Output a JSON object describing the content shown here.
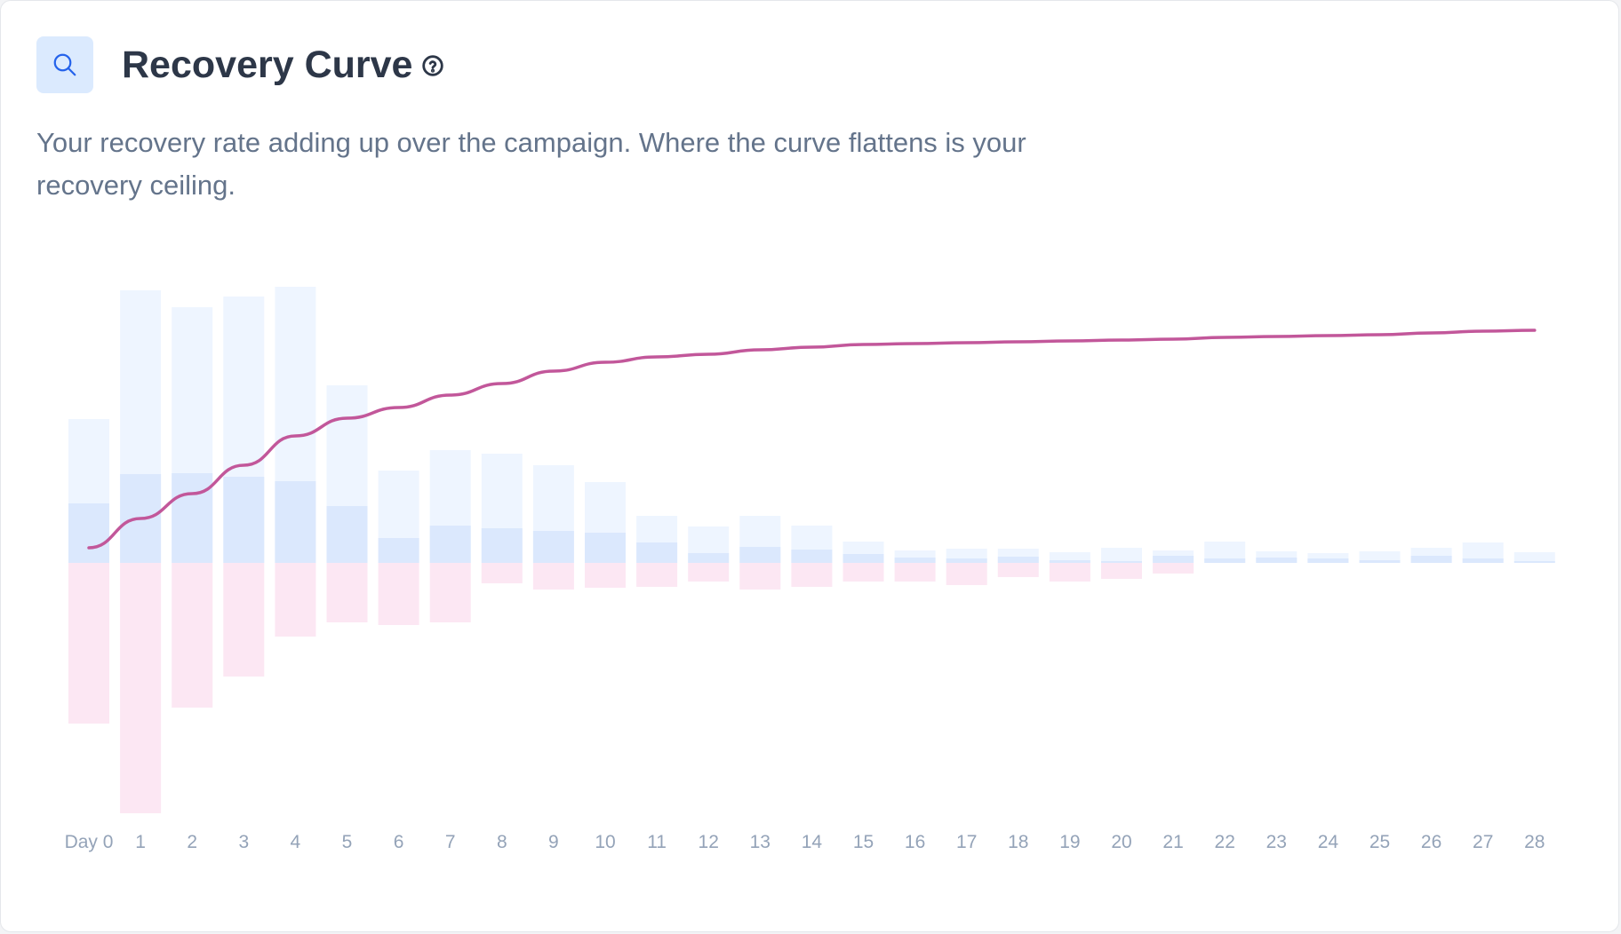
{
  "header": {
    "title": "Recovery Curve",
    "description": "Your recovery rate adding up over the campaign. Where the curve flattens is your recovery ceiling.",
    "icon": "search-icon",
    "help_icon": "help-circle-icon"
  },
  "colors": {
    "accent": "#2563eb",
    "icon_bg": "#dbeafe",
    "attempted_bar": "#eef5ff",
    "recovered_bar": "#dbe8fd",
    "failed_bar": "#fce7f3",
    "cumulative_line": "#c2579a"
  },
  "chart_data": {
    "type": "bar",
    "categories": [
      "Day 0",
      "1",
      "2",
      "3",
      "4",
      "5",
      "6",
      "7",
      "8",
      "9",
      "10",
      "11",
      "12",
      "13",
      "14",
      "15",
      "16",
      "17",
      "18",
      "19",
      "20",
      "21",
      "22",
      "23",
      "24",
      "25",
      "26",
      "27",
      "28"
    ],
    "series": [
      {
        "values": [
          162,
          307,
          288,
          300,
          311,
          200,
          104,
          127,
          123,
          110,
          91,
          53,
          41,
          53,
          42,
          24,
          14,
          16,
          16,
          12,
          17,
          14,
          24,
          13,
          11,
          13,
          17,
          23,
          12
        ]
      },
      {
        "values": [
          67,
          100,
          101,
          97,
          92,
          64,
          28,
          42,
          39,
          36,
          34,
          23,
          11,
          18,
          15,
          10,
          6,
          5,
          7,
          3,
          2,
          8,
          5,
          6,
          5,
          3,
          8,
          5,
          2
        ]
      },
      {
        "values": [
          -181,
          -282,
          -163,
          -128,
          -83,
          -67,
          -70,
          -67,
          -23,
          -30,
          -28,
          -27,
          -21,
          -30,
          -27,
          -21,
          -21,
          -25,
          -16,
          -21,
          -18,
          -12,
          0,
          0,
          0,
          0,
          0,
          0,
          0
        ]
      },
      {
        "values": [
          17,
          50,
          78,
          110,
          143,
          163,
          175,
          189,
          202,
          216,
          226,
          232,
          235,
          240,
          243,
          246,
          247,
          248,
          249,
          250,
          251,
          252,
          254,
          255,
          256,
          257,
          259,
          261,
          262
        ]
      }
    ],
    "ylim": [
      -290,
      320
    ],
    "grid": false,
    "legend": "none"
  }
}
